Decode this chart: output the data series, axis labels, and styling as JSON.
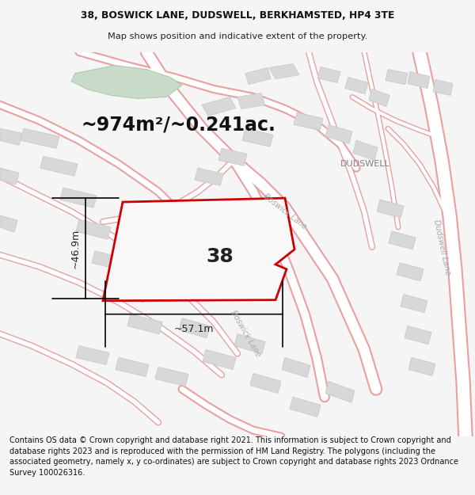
{
  "title_line1": "38, BOSWICK LANE, DUDSWELL, BERKHAMSTED, HP4 3TE",
  "title_line2": "Map shows position and indicative extent of the property.",
  "area_text": "~974m²/~0.241ac.",
  "number_label": "38",
  "dim_width": "~57.1m",
  "dim_height": "~46.9m",
  "dudswell_label": "DUDSWELL",
  "boswick_lane_label1": "Boswick Lane",
  "boswick_lane_label2": "Boswick Lane",
  "dudswell_lane_label": "Dudswell Lane",
  "footer_text": "Contains OS data © Crown copyright and database right 2021. This information is subject to Crown copyright and database rights 2023 and is reproduced with the permission of HM Land Registry. The polygons (including the associated geometry, namely x, y co-ordinates) are subject to Crown copyright and database rights 2023 Ordnance Survey 100026316.",
  "bg_color": "#f5f5f5",
  "map_bg": "#ffffff",
  "road_color": "#e8a0a0",
  "road_fill": "#ffffff",
  "building_fill": "#d8d8d8",
  "building_edge": "#cccccc",
  "green_fill": "#c8dac8",
  "red_plot_color": "#cc0000",
  "red_plot_linewidth": 2.0
}
